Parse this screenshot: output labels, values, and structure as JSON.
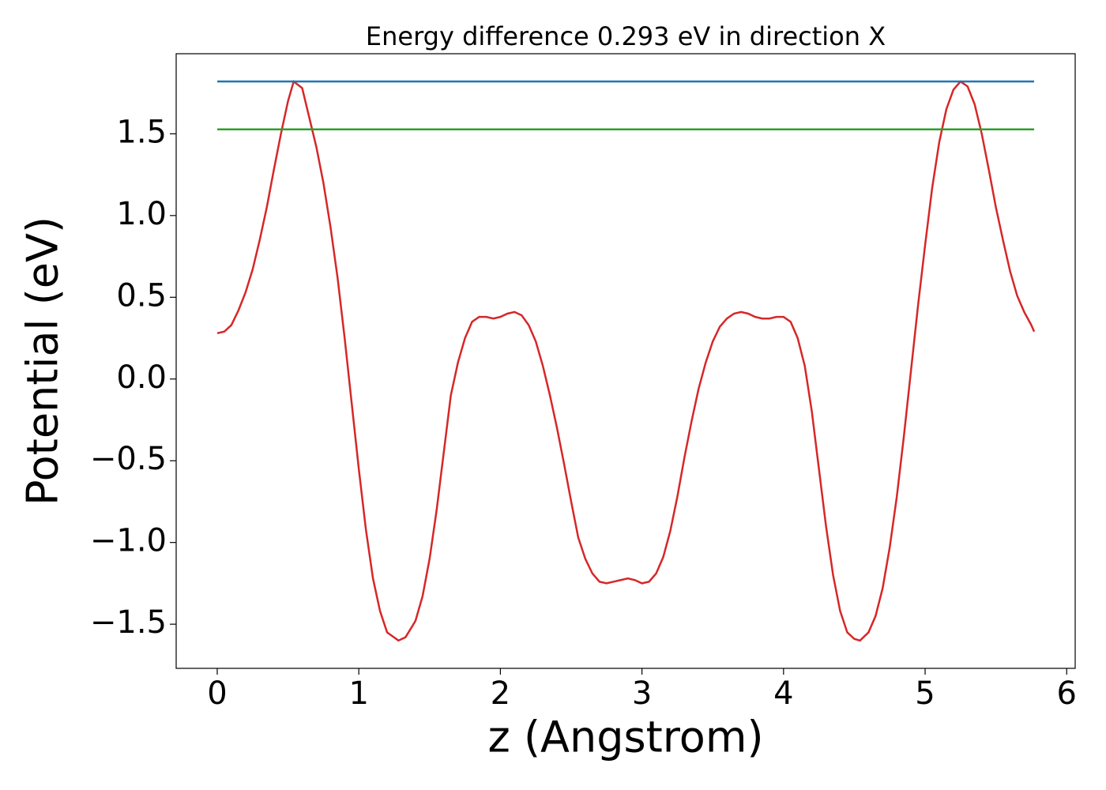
{
  "chart_data": {
    "type": "line",
    "title": "Energy difference 0.293 eV in direction X",
    "x_label": "z (Angstrom)",
    "y_label": "Potential (eV)",
    "xlim": [
      -0.29,
      6.06
    ],
    "ylim": [
      -1.77,
      1.99
    ],
    "xticks": [
      0,
      1,
      2,
      3,
      4,
      5,
      6
    ],
    "yticks": [
      {
        "value": -1.5,
        "label": "−1.5"
      },
      {
        "value": -1.0,
        "label": "−1.0"
      },
      {
        "value": -0.5,
        "label": "−0.5"
      },
      {
        "value": 0,
        "label": "0.0"
      },
      0.5,
      {
        "value": 1.0,
        "label": "1.0"
      },
      1.5
    ],
    "grid": false,
    "series": [
      {
        "color": "#d62728",
        "x": [
          0,
          0.05,
          0.1,
          0.15,
          0.2,
          0.25,
          0.3,
          0.35,
          0.4,
          0.45,
          0.5,
          0.54,
          0.6,
          0.65,
          0.7,
          0.75,
          0.8,
          0.85,
          0.9,
          0.95,
          1.0,
          1.05,
          1.1,
          1.15,
          1.2,
          1.28,
          1.33,
          1.4,
          1.45,
          1.5,
          1.55,
          1.6,
          1.65,
          1.7,
          1.75,
          1.8,
          1.85,
          1.9,
          1.95,
          2.0,
          2.05,
          2.1,
          2.15,
          2.2,
          2.25,
          2.3,
          2.35,
          2.4,
          2.45,
          2.5,
          2.55,
          2.6,
          2.65,
          2.7,
          2.75,
          2.8,
          2.85,
          2.9,
          2.95,
          3.0,
          3.05,
          3.1,
          3.15,
          3.2,
          3.25,
          3.3,
          3.35,
          3.4,
          3.45,
          3.5,
          3.55,
          3.6,
          3.65,
          3.7,
          3.75,
          3.8,
          3.85,
          3.9,
          3.95,
          4.0,
          4.05,
          4.1,
          4.15,
          4.2,
          4.25,
          4.3,
          4.35,
          4.4,
          4.45,
          4.5,
          4.54,
          4.6,
          4.65,
          4.7,
          4.75,
          4.8,
          4.85,
          4.9,
          4.95,
          5.0,
          5.05,
          5.1,
          5.15,
          5.2,
          5.25,
          5.3,
          5.35,
          5.4,
          5.45,
          5.5,
          5.55,
          5.6,
          5.65,
          5.7,
          5.75,
          5.77
        ],
        "values": [
          0.28,
          0.29,
          0.33,
          0.42,
          0.53,
          0.67,
          0.85,
          1.05,
          1.28,
          1.5,
          1.7,
          1.82,
          1.78,
          1.6,
          1.42,
          1.2,
          0.93,
          0.62,
          0.25,
          -0.15,
          -0.55,
          -0.92,
          -1.22,
          -1.42,
          -1.55,
          -1.6,
          -1.58,
          -1.48,
          -1.33,
          -1.1,
          -0.8,
          -0.45,
          -0.1,
          0.1,
          0.25,
          0.35,
          0.38,
          0.38,
          0.37,
          0.38,
          0.4,
          0.41,
          0.39,
          0.33,
          0.23,
          0.08,
          -0.1,
          -0.3,
          -0.52,
          -0.75,
          -0.97,
          -1.1,
          -1.19,
          -1.24,
          -1.25,
          -1.24,
          -1.23,
          -1.22,
          -1.23,
          -1.25,
          -1.24,
          -1.19,
          -1.09,
          -0.93,
          -0.72,
          -0.48,
          -0.26,
          -0.06,
          0.1,
          0.23,
          0.32,
          0.37,
          0.4,
          0.41,
          0.4,
          0.38,
          0.37,
          0.37,
          0.38,
          0.38,
          0.35,
          0.25,
          0.08,
          -0.2,
          -0.55,
          -0.9,
          -1.2,
          -1.42,
          -1.55,
          -1.59,
          -1.6,
          -1.55,
          -1.45,
          -1.28,
          -1.03,
          -0.72,
          -0.35,
          0.05,
          0.45,
          0.82,
          1.17,
          1.45,
          1.65,
          1.77,
          1.82,
          1.79,
          1.68,
          1.5,
          1.28,
          1.05,
          0.85,
          0.66,
          0.51,
          0.41,
          0.33,
          0.29
        ]
      },
      {
        "color": "#1f77b4",
        "x": [
          0,
          5.77
        ],
        "values": [
          1.82,
          1.82
        ]
      },
      {
        "color": "#2ca02c",
        "x": [
          0,
          5.77
        ],
        "values": [
          1.527,
          1.527
        ]
      }
    ]
  }
}
